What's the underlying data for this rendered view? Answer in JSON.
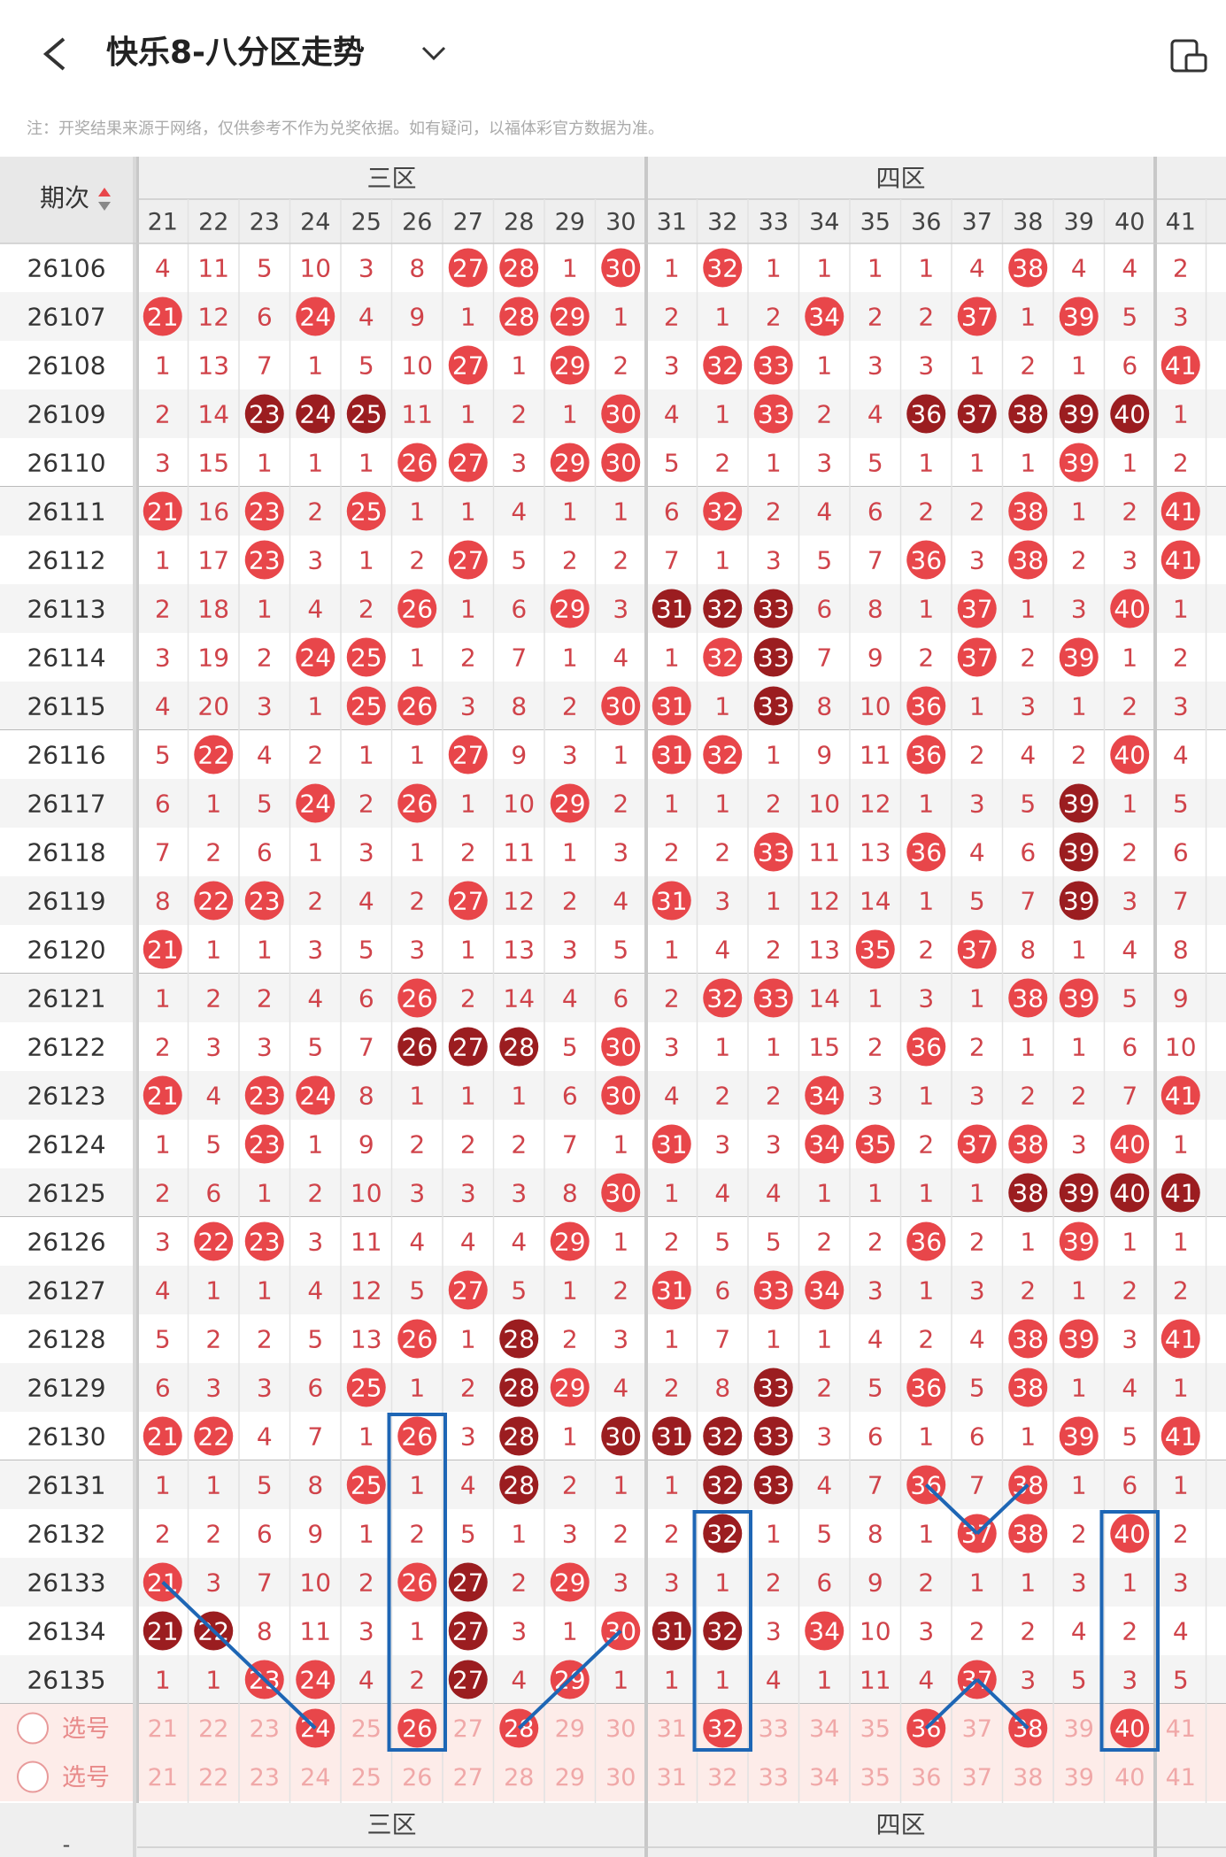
{
  "header": {
    "title": "快乐8-八分区走势",
    "note": "注：开奖结果来源于网络，仅供参考不作为兑奖依据。如有疑问，以福体彩官方数据为准。"
  },
  "table": {
    "period_label": "期次",
    "zones": [
      "三区",
      "四区"
    ],
    "columns": [
      21,
      22,
      23,
      24,
      25,
      26,
      27,
      28,
      29,
      30,
      31,
      32,
      33,
      34,
      35,
      36,
      37,
      38,
      39,
      40,
      41
    ],
    "rows": [
      {
        "period": "26106",
        "cells": [
          4,
          11,
          5,
          10,
          3,
          8,
          27,
          28,
          1,
          30,
          1,
          32,
          1,
          1,
          1,
          1,
          4,
          38,
          4,
          4,
          2
        ],
        "dark": []
      },
      {
        "period": "26107",
        "cells": [
          21,
          12,
          6,
          24,
          4,
          9,
          1,
          28,
          29,
          1,
          2,
          1,
          2,
          34,
          2,
          2,
          37,
          1,
          39,
          5,
          3
        ],
        "dark": []
      },
      {
        "period": "26108",
        "cells": [
          1,
          13,
          7,
          1,
          5,
          10,
          27,
          1,
          29,
          2,
          3,
          32,
          33,
          1,
          3,
          3,
          1,
          2,
          1,
          6,
          41
        ],
        "dark": []
      },
      {
        "period": "26109",
        "cells": [
          2,
          14,
          23,
          24,
          25,
          11,
          1,
          2,
          1,
          30,
          4,
          1,
          33,
          2,
          4,
          36,
          37,
          38,
          39,
          40,
          1
        ],
        "dark": [
          23,
          24,
          25,
          36,
          37,
          38,
          39,
          40
        ]
      },
      {
        "period": "26110",
        "cells": [
          3,
          15,
          1,
          1,
          1,
          26,
          27,
          3,
          29,
          30,
          5,
          2,
          1,
          3,
          5,
          1,
          1,
          1,
          39,
          1,
          2
        ],
        "dark": []
      },
      {
        "period": "26111",
        "cells": [
          21,
          16,
          23,
          2,
          25,
          1,
          1,
          4,
          1,
          1,
          6,
          32,
          2,
          4,
          6,
          2,
          2,
          38,
          1,
          2,
          41
        ],
        "dark": []
      },
      {
        "period": "26112",
        "cells": [
          1,
          17,
          23,
          3,
          1,
          2,
          27,
          5,
          2,
          2,
          7,
          1,
          3,
          5,
          7,
          36,
          3,
          38,
          2,
          3,
          41
        ],
        "dark": []
      },
      {
        "period": "26113",
        "cells": [
          2,
          18,
          1,
          4,
          2,
          26,
          1,
          6,
          29,
          3,
          31,
          32,
          33,
          6,
          8,
          1,
          37,
          1,
          3,
          40,
          1
        ],
        "dark": [
          31,
          32,
          33
        ]
      },
      {
        "period": "26114",
        "cells": [
          3,
          19,
          2,
          24,
          25,
          1,
          2,
          7,
          1,
          4,
          1,
          32,
          33,
          7,
          9,
          2,
          37,
          2,
          39,
          1,
          2
        ],
        "dark": [
          33
        ]
      },
      {
        "period": "26115",
        "cells": [
          4,
          20,
          3,
          1,
          25,
          26,
          3,
          8,
          2,
          30,
          31,
          1,
          33,
          8,
          10,
          36,
          1,
          3,
          1,
          2,
          3
        ],
        "dark": [
          33
        ]
      },
      {
        "period": "26116",
        "cells": [
          5,
          22,
          4,
          2,
          1,
          1,
          27,
          9,
          3,
          1,
          31,
          32,
          1,
          9,
          11,
          36,
          2,
          4,
          2,
          40,
          4
        ],
        "dark": []
      },
      {
        "period": "26117",
        "cells": [
          6,
          1,
          5,
          24,
          2,
          26,
          1,
          10,
          29,
          2,
          1,
          1,
          2,
          10,
          12,
          1,
          3,
          5,
          39,
          1,
          5
        ],
        "dark": [
          39
        ]
      },
      {
        "period": "26118",
        "cells": [
          7,
          2,
          6,
          1,
          3,
          1,
          2,
          11,
          1,
          3,
          2,
          2,
          33,
          11,
          13,
          36,
          4,
          6,
          39,
          2,
          6
        ],
        "dark": [
          39
        ]
      },
      {
        "period": "26119",
        "cells": [
          8,
          22,
          23,
          2,
          4,
          2,
          27,
          12,
          2,
          4,
          31,
          3,
          1,
          12,
          14,
          1,
          5,
          7,
          39,
          3,
          7
        ],
        "dark": [
          39
        ]
      },
      {
        "period": "26120",
        "cells": [
          21,
          1,
          1,
          3,
          5,
          3,
          1,
          13,
          3,
          5,
          1,
          4,
          2,
          13,
          35,
          2,
          37,
          8,
          1,
          4,
          8
        ],
        "dark": []
      },
      {
        "period": "26121",
        "cells": [
          1,
          2,
          2,
          4,
          6,
          26,
          2,
          14,
          4,
          6,
          2,
          32,
          33,
          14,
          1,
          3,
          1,
          38,
          39,
          5,
          9
        ],
        "dark": []
      },
      {
        "period": "26122",
        "cells": [
          2,
          3,
          3,
          5,
          7,
          26,
          27,
          28,
          5,
          30,
          3,
          1,
          1,
          15,
          2,
          36,
          2,
          1,
          1,
          6,
          10
        ],
        "dark": [
          26,
          27,
          28
        ]
      },
      {
        "period": "26123",
        "cells": [
          21,
          4,
          23,
          24,
          8,
          1,
          1,
          1,
          6,
          30,
          4,
          2,
          2,
          34,
          3,
          1,
          3,
          2,
          2,
          7,
          41
        ],
        "dark": []
      },
      {
        "period": "26124",
        "cells": [
          1,
          5,
          23,
          1,
          9,
          2,
          2,
          2,
          7,
          1,
          31,
          3,
          3,
          34,
          35,
          2,
          37,
          38,
          3,
          40,
          1
        ],
        "dark": []
      },
      {
        "period": "26125",
        "cells": [
          2,
          6,
          1,
          2,
          10,
          3,
          3,
          3,
          8,
          30,
          1,
          4,
          4,
          1,
          1,
          1,
          1,
          38,
          39,
          40,
          41
        ],
        "dark": [
          38,
          39,
          40,
          41
        ]
      },
      {
        "period": "26126",
        "cells": [
          3,
          22,
          23,
          3,
          11,
          4,
          4,
          4,
          29,
          1,
          2,
          5,
          5,
          2,
          2,
          36,
          2,
          1,
          39,
          1,
          1
        ],
        "dark": []
      },
      {
        "period": "26127",
        "cells": [
          4,
          1,
          1,
          4,
          12,
          5,
          27,
          5,
          1,
          2,
          31,
          6,
          33,
          34,
          3,
          1,
          3,
          2,
          1,
          2,
          2
        ],
        "dark": []
      },
      {
        "period": "26128",
        "cells": [
          5,
          2,
          2,
          5,
          13,
          26,
          1,
          28,
          2,
          3,
          1,
          7,
          1,
          1,
          4,
          2,
          4,
          38,
          39,
          3,
          41
        ],
        "dark": [
          28
        ]
      },
      {
        "period": "26129",
        "cells": [
          6,
          3,
          3,
          6,
          25,
          1,
          2,
          28,
          29,
          4,
          2,
          8,
          33,
          2,
          5,
          36,
          5,
          38,
          1,
          4,
          1
        ],
        "dark": [
          28,
          33
        ]
      },
      {
        "period": "26130",
        "cells": [
          21,
          22,
          4,
          7,
          1,
          26,
          3,
          28,
          1,
          30,
          31,
          32,
          33,
          3,
          6,
          1,
          6,
          1,
          39,
          5,
          41
        ],
        "dark": [
          28,
          30,
          31,
          32,
          33
        ]
      },
      {
        "period": "26131",
        "cells": [
          1,
          1,
          5,
          8,
          25,
          1,
          4,
          28,
          2,
          1,
          1,
          32,
          33,
          4,
          7,
          36,
          7,
          38,
          1,
          6,
          1
        ],
        "dark": [
          28,
          32,
          33
        ]
      },
      {
        "period": "26132",
        "cells": [
          2,
          2,
          6,
          9,
          1,
          2,
          5,
          1,
          3,
          2,
          2,
          32,
          1,
          5,
          8,
          1,
          37,
          38,
          2,
          40,
          2
        ],
        "dark": [
          32
        ]
      },
      {
        "period": "26133",
        "cells": [
          21,
          3,
          7,
          10,
          2,
          26,
          27,
          2,
          29,
          3,
          3,
          1,
          2,
          6,
          9,
          2,
          1,
          1,
          3,
          1,
          3
        ],
        "dark": [
          27
        ]
      },
      {
        "period": "26134",
        "cells": [
          21,
          22,
          8,
          11,
          3,
          1,
          27,
          3,
          1,
          30,
          31,
          32,
          3,
          34,
          10,
          3,
          2,
          2,
          4,
          2,
          4
        ],
        "dark": [
          21,
          22,
          27,
          31,
          32
        ]
      },
      {
        "period": "26135",
        "cells": [
          1,
          1,
          23,
          24,
          4,
          2,
          27,
          4,
          29,
          1,
          1,
          1,
          4,
          1,
          11,
          4,
          37,
          3,
          5,
          3,
          5
        ],
        "dark": [
          27
        ]
      }
    ],
    "pick_rows": [
      {
        "label": "选号",
        "selected": [
          24,
          26,
          28,
          32,
          36,
          38,
          40
        ]
      },
      {
        "label": "选号",
        "selected": []
      }
    ]
  },
  "footer": {
    "zones": [
      "三区",
      "四区"
    ],
    "dash": "-"
  }
}
